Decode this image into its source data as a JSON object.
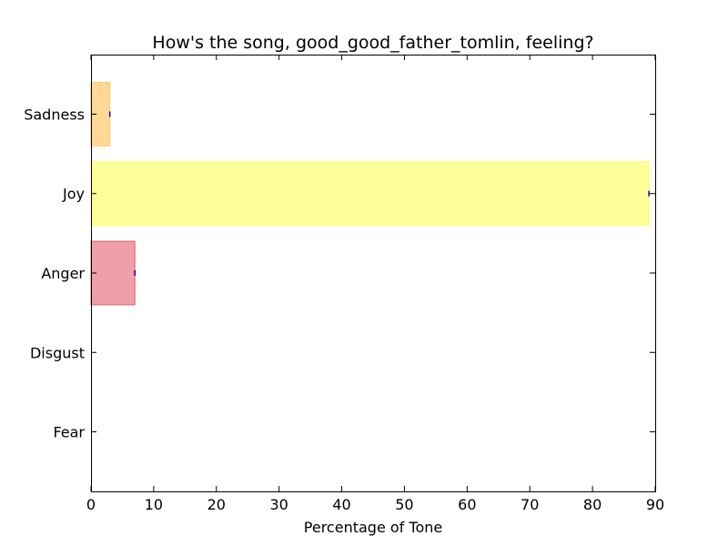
{
  "chart_data": {
    "type": "bar",
    "orientation": "horizontal",
    "title": "How's the song, good_good_father_tomlin, feeling?",
    "xlabel": "Percentage of Tone",
    "ylabel": "",
    "categories": [
      "Fear",
      "Disgust",
      "Anger",
      "Joy",
      "Sadness"
    ],
    "values": [
      0,
      0,
      7,
      89,
      3
    ],
    "colors": [
      "#9c9cd6",
      "#7cc47c",
      "#f09ea8",
      "#ffff99",
      "#ffd898"
    ],
    "edge_colors": [
      "#5050a0",
      "#3a8a3a",
      "#e06070",
      "#ffff66",
      "#ffc860"
    ],
    "xlim": [
      0,
      90
    ],
    "xticks": [
      0,
      10,
      20,
      30,
      40,
      50,
      60,
      70,
      80,
      90
    ],
    "grid": false,
    "legend": "none"
  }
}
